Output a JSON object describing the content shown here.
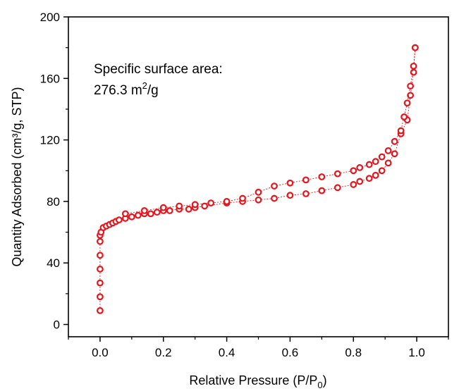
{
  "chart_data": {
    "type": "scatter",
    "xlabel": "Relative Pressure  (P/P",
    "xlabel_sub": "0",
    "xlabel_end": ")",
    "ylabel": "Quantity Adsorbed (cm³/g, STP)",
    "xlim": [
      -0.1,
      1.1
    ],
    "ylim": [
      -8,
      200
    ],
    "xticks": [
      0.0,
      0.2,
      0.4,
      0.6,
      0.8,
      1.0
    ],
    "xtick_labels": [
      "0.0",
      "0.2",
      "0.4",
      "0.6",
      "0.8",
      "1.0"
    ],
    "yticks": [
      0,
      40,
      80,
      120,
      160,
      200
    ],
    "ytick_labels": [
      "0",
      "40",
      "80",
      "120",
      "160",
      "200"
    ],
    "annotation": {
      "line1": "Specific surface area:",
      "line2_value": "276.3 m",
      "line2_sup": "2",
      "line2_unit": "/g"
    },
    "color": "#e8141c",
    "grid": false,
    "marker": "open-circle",
    "series": [
      {
        "x": [
          0.0,
          0.0,
          0.0,
          0.0,
          0.0,
          0.0,
          0.0,
          0.003,
          0.01,
          0.02,
          0.03,
          0.04,
          0.05,
          0.06,
          0.08,
          0.1,
          0.12,
          0.14,
          0.16,
          0.18,
          0.2,
          0.22,
          0.25,
          0.28,
          0.3,
          0.33,
          0.4,
          0.45,
          0.5,
          0.55,
          0.6,
          0.65,
          0.7,
          0.75,
          0.8,
          0.82,
          0.85,
          0.87,
          0.89,
          0.91,
          0.93,
          0.95,
          0.97,
          0.98,
          0.99,
          0.995
        ],
        "y": [
          9,
          18,
          27,
          36,
          45,
          54,
          58,
          60,
          63,
          64,
          65,
          66,
          67,
          68,
          69,
          70,
          71,
          72,
          72,
          73,
          74,
          74,
          75,
          75,
          76,
          77,
          79,
          80,
          81,
          82,
          84,
          85,
          87,
          89,
          91,
          93,
          95,
          97,
          100,
          105,
          111,
          124,
          133,
          149,
          164,
          180
        ]
      },
      {
        "x": [
          0.995,
          0.99,
          0.98,
          0.97,
          0.96,
          0.95,
          0.93,
          0.91,
          0.89,
          0.87,
          0.85,
          0.82,
          0.8,
          0.75,
          0.7,
          0.65,
          0.6,
          0.55,
          0.5,
          0.45,
          0.4,
          0.35,
          0.3,
          0.25,
          0.2,
          0.14,
          0.08
        ],
        "y": [
          180,
          168,
          155,
          144,
          135,
          126,
          119,
          113,
          109,
          106,
          104,
          102,
          100,
          98,
          96,
          94,
          92,
          90,
          86,
          82,
          80,
          79,
          78,
          77,
          76,
          74,
          72
        ]
      }
    ]
  }
}
